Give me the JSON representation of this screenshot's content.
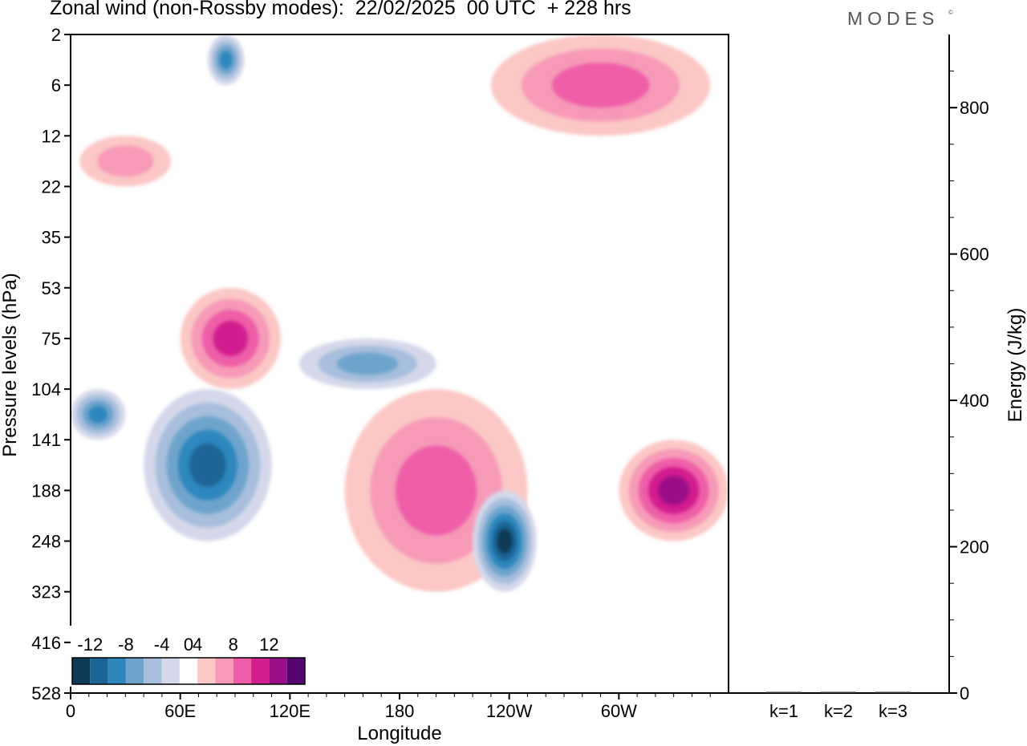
{
  "header": {
    "title": "Zonal wind (non-Rossby modes):  22/02/2025  00 UTC  + 228 hrs",
    "brand": "MODES",
    "brand_mark": "©"
  },
  "chart_data": [
    {
      "type": "heatmap",
      "title": "Zonal wind (non-Rossby modes):  22/02/2025  00 UTC  + 228 hrs",
      "xlabel": "Longitude",
      "ylabel": "Pressure levels (hPa)",
      "x_ticks": [
        "0",
        "60E",
        "120E",
        "180",
        "120W",
        "60W"
      ],
      "y_ticks": [
        "2",
        "6",
        "12",
        "22",
        "35",
        "53",
        "75",
        "104",
        "141",
        "188",
        "248",
        "323",
        "416",
        "528"
      ],
      "colorbar": {
        "tick_labels": [
          "-12",
          "-8",
          "-4",
          "0",
          "4",
          "8",
          "12"
        ],
        "levels": [
          -14,
          -12,
          -10,
          -8,
          -6,
          -4,
          -2,
          2,
          4,
          6,
          8,
          10,
          12,
          14
        ],
        "colors": [
          "#0d3a57",
          "#1a6596",
          "#2f87bd",
          "#6ea4cc",
          "#a7bedc",
          "#d4d8ea",
          "#ffffff",
          "#fbc8c6",
          "#f79ab8",
          "#ee5ea8",
          "#d11f8f",
          "#9a0f87",
          "#54056e"
        ]
      },
      "features": [
        {
          "name": "positive band upper-left",
          "lon_range": [
            5,
            55
          ],
          "level_range": [
            "12",
            "22"
          ],
          "value": 4
        },
        {
          "name": "negative cell top",
          "lon_range": [
            75,
            95
          ],
          "level_range": [
            "2",
            "6"
          ],
          "value": -8
        },
        {
          "name": "positive tilted band",
          "lon_range": [
            60,
            115
          ],
          "level_range": [
            "53",
            "104"
          ],
          "value": 8
        },
        {
          "name": "negative tilted band",
          "lon_range": [
            40,
            110
          ],
          "level_range": [
            "104",
            "248"
          ],
          "value": -10
        },
        {
          "name": "negative cell",
          "lon_range": [
            0,
            30
          ],
          "level_range": [
            "104",
            "141"
          ],
          "value": -8
        },
        {
          "name": "positive band central",
          "lon_range": [
            150,
            250
          ],
          "level_range": [
            "104",
            "323"
          ],
          "value": 6
        },
        {
          "name": "negative band central",
          "lon_range": [
            125,
            200
          ],
          "level_range": [
            "75",
            "104"
          ],
          "value": -6
        },
        {
          "name": "negative cell 120W",
          "lon_range": [
            220,
            255
          ],
          "level_range": [
            "188",
            "323"
          ],
          "value": -12
        },
        {
          "name": "positive cell east edge",
          "lon_range": [
            300,
            360
          ],
          "level_range": [
            "141",
            "248"
          ],
          "value": 10
        },
        {
          "name": "positive band top right",
          "lon_range": [
            230,
            350
          ],
          "level_range": [
            "2",
            "12"
          ],
          "value": 6
        }
      ]
    },
    {
      "type": "bar",
      "categories": [
        "k=1",
        "k=2",
        "k=3"
      ],
      "values": [
        1,
        1,
        1
      ],
      "ylabel": "Energy (J/kg)",
      "y_ticks": [
        "0",
        "200",
        "400",
        "600",
        "800"
      ],
      "ylim": [
        0,
        900
      ]
    }
  ]
}
